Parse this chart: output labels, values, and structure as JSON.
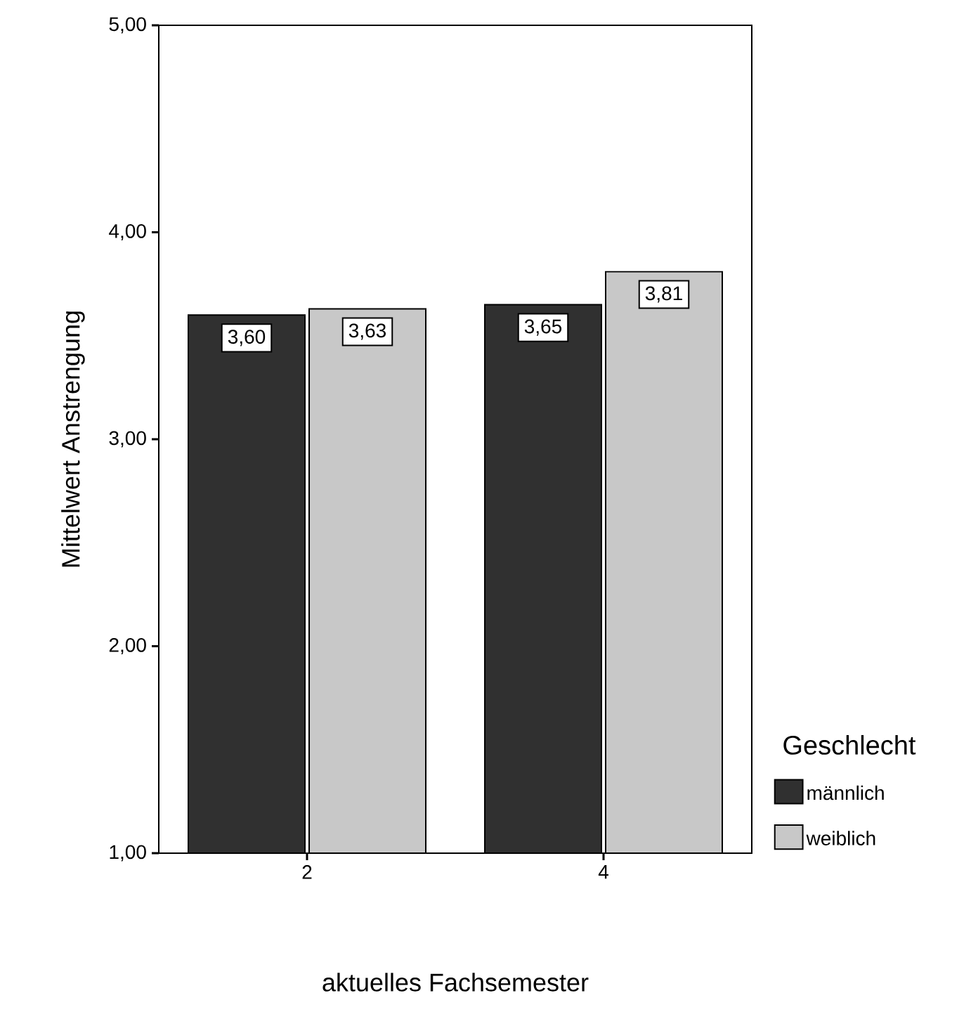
{
  "chart_data": {
    "type": "bar",
    "xlabel": "aktuelles Fachsemester",
    "ylabel": "Mittelwert Anstrengung",
    "legend_title": "Geschlecht",
    "categories": [
      "2",
      "4"
    ],
    "series": [
      {
        "name": "männlich",
        "color": "#303030",
        "values": [
          3.6,
          3.65
        ],
        "value_labels": [
          "3,60",
          "3,65"
        ]
      },
      {
        "name": "weiblich",
        "color": "#c8c8c8",
        "values": [
          3.63,
          3.81
        ],
        "value_labels": [
          "3,63",
          "3,81"
        ]
      }
    ],
    "ylim": [
      1,
      5
    ],
    "yticks": [
      {
        "value": 1,
        "label": "1,00"
      },
      {
        "value": 2,
        "label": "2,00"
      },
      {
        "value": 3,
        "label": "3,00"
      },
      {
        "value": 4,
        "label": "4,00"
      },
      {
        "value": 5,
        "label": "5,00"
      }
    ],
    "legend": "right",
    "grid": false
  }
}
